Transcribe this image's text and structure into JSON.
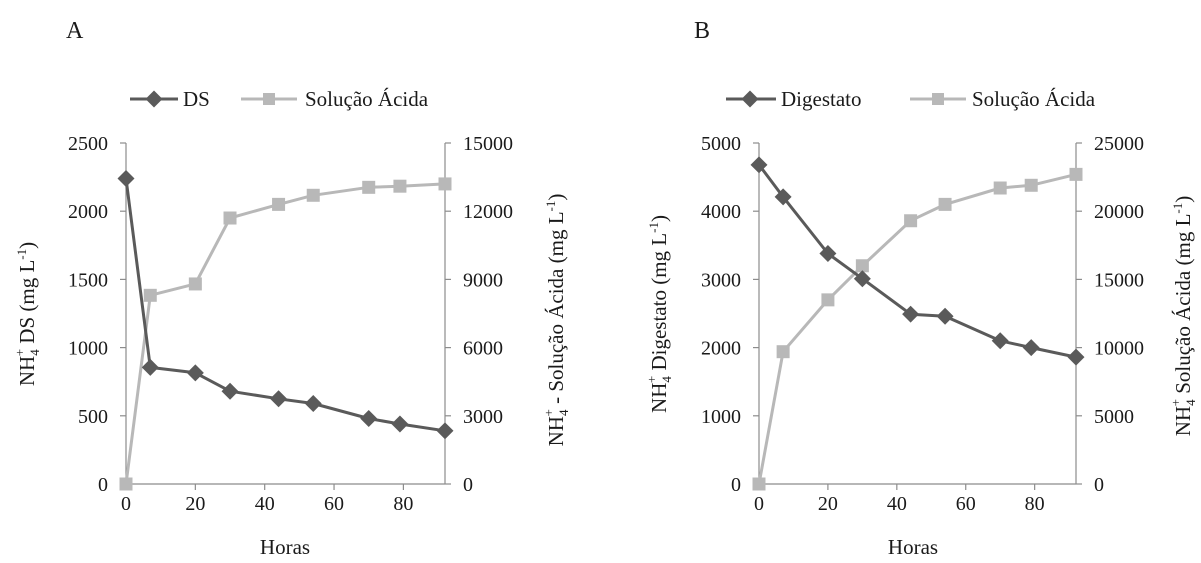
{
  "chart_data": [
    {
      "type": "line",
      "panel_label": "A",
      "xlabel": "Horas",
      "ylabel_left_main": "NH",
      "ylabel_left_sub": "4",
      "ylabel_left_sup": "+",
      "ylabel_left_rest": " DS  (mg L",
      "ylabel_left_exp": "-1",
      "ylabel_left_end": ")",
      "ylabel_right_main": "NH",
      "ylabel_right_sub": "4",
      "ylabel_right_sup": "+",
      "ylabel_right_rest": " - Solução Ácida (mg L",
      "ylabel_right_exp": "-1",
      "ylabel_right_end": ")",
      "xlim": [
        0,
        92
      ],
      "xticks": [
        "0",
        "20",
        "40",
        "60",
        "80"
      ],
      "ylim_left": [
        0,
        2500
      ],
      "yticks_left": [
        "0",
        "500",
        "1000",
        "1500",
        "2000",
        "2500"
      ],
      "ylim_right": [
        0,
        15000
      ],
      "yticks_right": [
        "0",
        "3000",
        "6000",
        "9000",
        "12000",
        "15000"
      ],
      "legend_position": "top",
      "series": [
        {
          "name": "DS",
          "axis": "left",
          "marker": "diamond",
          "color": "#5a5a5a",
          "x": [
            0,
            7,
            20,
            30,
            44,
            54,
            70,
            79,
            92
          ],
          "y": [
            2240,
            855,
            815,
            680,
            625,
            590,
            480,
            440,
            390
          ]
        },
        {
          "name": "Solução Ácida",
          "axis": "right",
          "marker": "square",
          "color": "#b8b8b8",
          "x": [
            0,
            7,
            20,
            30,
            44,
            54,
            70,
            79,
            92
          ],
          "y": [
            0,
            8300,
            8800,
            11700,
            12300,
            12700,
            13050,
            13100,
            13200
          ]
        }
      ]
    },
    {
      "type": "line",
      "panel_label": "B",
      "xlabel": "Horas",
      "ylabel_left_main": "NH",
      "ylabel_left_sub": "4",
      "ylabel_left_sup": "+",
      "ylabel_left_rest": " Digestato (mg L",
      "ylabel_left_exp": "-1",
      "ylabel_left_end": ")",
      "ylabel_right_main": "NH",
      "ylabel_right_sub": "4",
      "ylabel_right_sup": "+",
      "ylabel_right_rest": " Solução Ácida (mg L",
      "ylabel_right_exp": "-1",
      "ylabel_right_end": ")",
      "xlim": [
        0,
        92
      ],
      "xticks": [
        "0",
        "20",
        "40",
        "60",
        "80"
      ],
      "ylim_left": [
        0,
        5000
      ],
      "yticks_left": [
        "0",
        "1000",
        "2000",
        "3000",
        "4000",
        "5000"
      ],
      "ylim_right": [
        0,
        25000
      ],
      "yticks_right": [
        "0",
        "5000",
        "10000",
        "15000",
        "20000",
        "25000"
      ],
      "legend_position": "top",
      "series": [
        {
          "name": "Digestato",
          "axis": "left",
          "marker": "diamond",
          "color": "#5a5a5a",
          "x": [
            0,
            7,
            20,
            30,
            44,
            54,
            70,
            79,
            92
          ],
          "y": [
            4680,
            4210,
            3380,
            3010,
            2490,
            2460,
            2100,
            2000,
            1860
          ]
        },
        {
          "name": "Solução Ácida",
          "axis": "right",
          "marker": "square",
          "color": "#b8b8b8",
          "x": [
            0,
            7,
            20,
            30,
            44,
            54,
            70,
            79,
            92
          ],
          "y": [
            0,
            9700,
            13500,
            16000,
            19300,
            20500,
            21700,
            21900,
            22700
          ]
        }
      ]
    }
  ]
}
